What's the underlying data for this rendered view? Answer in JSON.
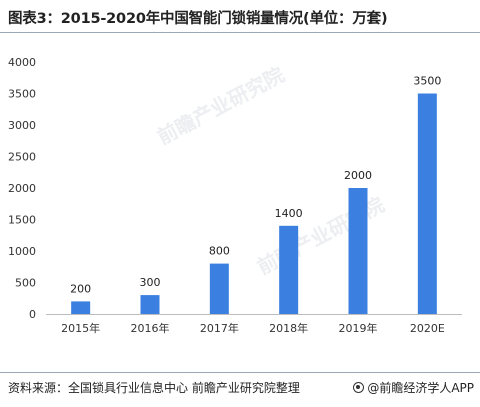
{
  "title": "图表3：2015-2020年中国智能门锁销量情况(单位：万套)",
  "chart_data": {
    "type": "bar",
    "categories": [
      "2015年",
      "2016年",
      "2017年",
      "2018年",
      "2019年",
      "2020E"
    ],
    "values": [
      200,
      300,
      800,
      1400,
      2000,
      3500
    ],
    "ylim": [
      0,
      4000
    ],
    "yticks": [
      0,
      500,
      1000,
      1500,
      2000,
      2500,
      3000,
      3500,
      4000
    ],
    "bar_color": "#3b7fe0",
    "data_labels": true,
    "grid": false
  },
  "footer": {
    "source": "资料来源：全国锁具行业信息中心 前瞻产业研究院整理",
    "brand": "@前瞻经济学人APP"
  },
  "watermark": {
    "text": "前瞻产业研究院"
  },
  "colors": {
    "bar": "#3b7fe0",
    "rule": "#9aa7b7"
  }
}
